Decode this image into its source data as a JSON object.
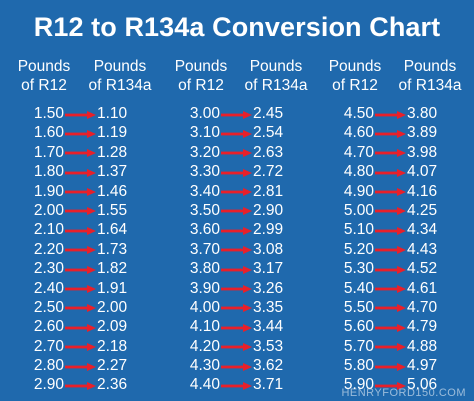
{
  "title": "R12 to R134a Conversion Chart",
  "headers": {
    "r12": [
      "Pounds",
      "of R12"
    ],
    "r134a": [
      "Pounds",
      "of R134a"
    ]
  },
  "columns": [
    {
      "r12": [
        "1.50",
        "1.60",
        "1.70",
        "1.80",
        "1.90",
        "2.00",
        "2.10",
        "2.20",
        "2.30",
        "2.40",
        "2.50",
        "2.60",
        "2.70",
        "2.80",
        "2.90"
      ],
      "r134a": [
        "1.10",
        "1.19",
        "1.28",
        "1.37",
        "1.46",
        "1.55",
        "1.64",
        "1.73",
        "1.82",
        "1.91",
        "2.00",
        "2.09",
        "2.18",
        "2.27",
        "2.36"
      ]
    },
    {
      "r12": [
        "3.00",
        "3.10",
        "3.20",
        "3.30",
        "3.40",
        "3.50",
        "3.60",
        "3.70",
        "3.80",
        "3.90",
        "4.00",
        "4.10",
        "4.20",
        "4.30",
        "4.40"
      ],
      "r134a": [
        "2.45",
        "2.54",
        "2.63",
        "2.72",
        "2.81",
        "2.90",
        "2.99",
        "3.08",
        "3.17",
        "3.26",
        "3.35",
        "3.44",
        "3.53",
        "3.62",
        "3.71"
      ]
    },
    {
      "r12": [
        "4.50",
        "4.60",
        "4.70",
        "4.80",
        "4.90",
        "5.00",
        "5.10",
        "5.20",
        "5.30",
        "5.40",
        "5.50",
        "5.60",
        "5.70",
        "5.80",
        "5.90"
      ],
      "r134a": [
        "3.80",
        "3.89",
        "3.98",
        "4.07",
        "4.16",
        "4.25",
        "4.34",
        "4.43",
        "4.52",
        "4.61",
        "4.70",
        "4.79",
        "4.88",
        "4.97",
        "5.06"
      ]
    }
  ],
  "arrow_icon": "right-arrow-icon",
  "colors": {
    "background": "#1f69ad",
    "arrow": "#e8202a",
    "text": "#ffffff"
  },
  "watermark": "HENRYFORD150.COM"
}
